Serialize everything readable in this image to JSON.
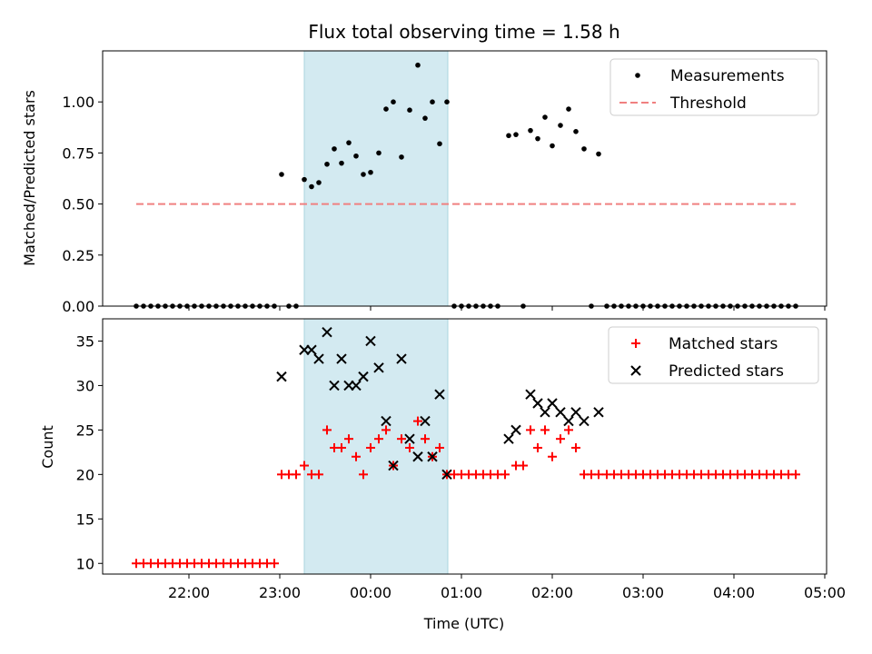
{
  "chart_data": {
    "type": "scatter",
    "title": "Flux total observing time = 1.58 h",
    "xlabel": "Time (UTC)",
    "x_tick_labels": [
      "22:00",
      "23:00",
      "00:00",
      "01:00",
      "02:00",
      "03:00",
      "04:00",
      "05:00"
    ],
    "x_tick_hours": [
      22,
      23,
      24,
      25,
      26,
      27,
      28,
      29
    ],
    "xlim_hours": [
      21.05,
      29.02
    ],
    "highlight_span_hours": [
      23.27,
      24.85
    ],
    "highlight_color": "#d3eaf1",
    "panels": [
      {
        "ylabel": "Matched/Predicted stars",
        "ylim": [
          0,
          1.25
        ],
        "y_ticks": [
          0.0,
          0.25,
          0.5,
          0.75,
          1.0
        ],
        "y_tick_labels": [
          "0.00",
          "0.25",
          "0.50",
          "0.75",
          "1.00"
        ],
        "legend_position": "top-right",
        "series": [
          {
            "name": "Measurements",
            "marker": "dot",
            "color": "#000000",
            "points": [
              [
                21.42,
                0
              ],
              [
                21.5,
                0
              ],
              [
                21.58,
                0
              ],
              [
                21.66,
                0
              ],
              [
                21.74,
                0
              ],
              [
                21.82,
                0
              ],
              [
                21.9,
                0
              ],
              [
                21.98,
                0
              ],
              [
                22.06,
                0
              ],
              [
                22.14,
                0
              ],
              [
                22.22,
                0
              ],
              [
                22.3,
                0
              ],
              [
                22.38,
                0
              ],
              [
                22.46,
                0
              ],
              [
                22.54,
                0
              ],
              [
                22.62,
                0
              ],
              [
                22.7,
                0
              ],
              [
                22.78,
                0
              ],
              [
                22.86,
                0
              ],
              [
                22.94,
                0
              ],
              [
                23.02,
                0.645
              ],
              [
                23.1,
                0
              ],
              [
                23.18,
                0
              ],
              [
                23.27,
                0.62
              ],
              [
                23.35,
                0.585
              ],
              [
                23.43,
                0.605
              ],
              [
                23.52,
                0.695
              ],
              [
                23.6,
                0.77
              ],
              [
                23.68,
                0.7
              ],
              [
                23.76,
                0.8
              ],
              [
                23.84,
                0.735
              ],
              [
                23.92,
                0.645
              ],
              [
                24.0,
                0.655
              ],
              [
                24.09,
                0.75
              ],
              [
                24.17,
                0.965
              ],
              [
                24.25,
                1.0
              ],
              [
                24.34,
                0.73
              ],
              [
                24.43,
                0.96
              ],
              [
                24.52,
                1.18
              ],
              [
                24.6,
                0.92
              ],
              [
                24.68,
                1.0
              ],
              [
                24.76,
                0.795
              ],
              [
                24.84,
                1.0
              ],
              [
                24.92,
                0
              ],
              [
                25.0,
                0
              ],
              [
                25.08,
                0
              ],
              [
                25.16,
                0
              ],
              [
                25.24,
                0
              ],
              [
                25.32,
                0
              ],
              [
                25.4,
                0
              ],
              [
                25.52,
                0.835
              ],
              [
                25.6,
                0.84
              ],
              [
                25.68,
                0
              ],
              [
                25.76,
                0.86
              ],
              [
                25.84,
                0.82
              ],
              [
                25.92,
                0.925
              ],
              [
                26.0,
                0.785
              ],
              [
                26.09,
                0.885
              ],
              [
                26.18,
                0.965
              ],
              [
                26.26,
                0.855
              ],
              [
                26.35,
                0.77
              ],
              [
                26.43,
                0
              ],
              [
                26.51,
                0.745
              ],
              [
                26.6,
                0
              ],
              [
                26.68,
                0
              ],
              [
                26.76,
                0
              ],
              [
                26.84,
                0
              ],
              [
                26.92,
                0
              ],
              [
                27.0,
                0
              ],
              [
                27.08,
                0
              ],
              [
                27.16,
                0
              ],
              [
                27.24,
                0
              ],
              [
                27.32,
                0
              ],
              [
                27.4,
                0
              ],
              [
                27.48,
                0
              ],
              [
                27.56,
                0
              ],
              [
                27.64,
                0
              ],
              [
                27.72,
                0
              ],
              [
                27.8,
                0
              ],
              [
                27.88,
                0
              ],
              [
                27.96,
                0
              ],
              [
                28.04,
                0
              ],
              [
                28.12,
                0
              ],
              [
                28.2,
                0
              ],
              [
                28.28,
                0
              ],
              [
                28.36,
                0
              ],
              [
                28.44,
                0
              ],
              [
                28.52,
                0
              ],
              [
                28.6,
                0
              ],
              [
                28.68,
                0
              ]
            ]
          },
          {
            "name": "Threshold",
            "marker": "dashed-line",
            "color": "#f08080",
            "points": [
              [
                21.42,
                0.5
              ],
              [
                28.68,
                0.5
              ]
            ]
          }
        ]
      },
      {
        "ylabel": "Count",
        "ylim": [
          8.8,
          37.5
        ],
        "y_ticks": [
          10,
          15,
          20,
          25,
          30,
          35
        ],
        "y_tick_labels": [
          "10",
          "15",
          "20",
          "25",
          "30",
          "35"
        ],
        "legend_position": "top-right",
        "series": [
          {
            "name": "Matched stars",
            "marker": "plus",
            "color": "#ff0000",
            "points": [
              [
                21.42,
                10
              ],
              [
                21.5,
                10
              ],
              [
                21.58,
                10
              ],
              [
                21.66,
                10
              ],
              [
                21.74,
                10
              ],
              [
                21.82,
                10
              ],
              [
                21.9,
                10
              ],
              [
                21.98,
                10
              ],
              [
                22.06,
                10
              ],
              [
                22.14,
                10
              ],
              [
                22.22,
                10
              ],
              [
                22.3,
                10
              ],
              [
                22.38,
                10
              ],
              [
                22.46,
                10
              ],
              [
                22.54,
                10
              ],
              [
                22.62,
                10
              ],
              [
                22.7,
                10
              ],
              [
                22.78,
                10
              ],
              [
                22.86,
                10
              ],
              [
                22.94,
                10
              ],
              [
                23.02,
                20
              ],
              [
                23.1,
                20
              ],
              [
                23.18,
                20
              ],
              [
                23.27,
                21
              ],
              [
                23.35,
                20
              ],
              [
                23.43,
                20
              ],
              [
                23.52,
                25
              ],
              [
                23.6,
                23
              ],
              [
                23.68,
                23
              ],
              [
                23.76,
                24
              ],
              [
                23.84,
                22
              ],
              [
                23.92,
                20
              ],
              [
                24.0,
                23
              ],
              [
                24.09,
                24
              ],
              [
                24.17,
                25
              ],
              [
                24.25,
                21
              ],
              [
                24.34,
                24
              ],
              [
                24.43,
                23
              ],
              [
                24.52,
                26
              ],
              [
                24.6,
                24
              ],
              [
                24.68,
                22
              ],
              [
                24.76,
                23
              ],
              [
                24.84,
                20
              ],
              [
                24.92,
                20
              ],
              [
                25.0,
                20
              ],
              [
                25.08,
                20
              ],
              [
                25.16,
                20
              ],
              [
                25.24,
                20
              ],
              [
                25.32,
                20
              ],
              [
                25.4,
                20
              ],
              [
                25.48,
                20
              ],
              [
                25.6,
                21
              ],
              [
                25.68,
                21
              ],
              [
                25.76,
                25
              ],
              [
                25.84,
                23
              ],
              [
                25.92,
                25
              ],
              [
                26.0,
                22
              ],
              [
                26.09,
                24
              ],
              [
                26.18,
                25
              ],
              [
                26.26,
                23
              ],
              [
                26.35,
                20
              ],
              [
                26.43,
                20
              ],
              [
                26.51,
                20
              ],
              [
                26.6,
                20
              ],
              [
                26.68,
                20
              ],
              [
                26.76,
                20
              ],
              [
                26.84,
                20
              ],
              [
                26.92,
                20
              ],
              [
                27.0,
                20
              ],
              [
                27.08,
                20
              ],
              [
                27.16,
                20
              ],
              [
                27.24,
                20
              ],
              [
                27.32,
                20
              ],
              [
                27.4,
                20
              ],
              [
                27.48,
                20
              ],
              [
                27.56,
                20
              ],
              [
                27.64,
                20
              ],
              [
                27.72,
                20
              ],
              [
                27.8,
                20
              ],
              [
                27.88,
                20
              ],
              [
                27.96,
                20
              ],
              [
                28.04,
                20
              ],
              [
                28.12,
                20
              ],
              [
                28.2,
                20
              ],
              [
                28.28,
                20
              ],
              [
                28.36,
                20
              ],
              [
                28.44,
                20
              ],
              [
                28.52,
                20
              ],
              [
                28.6,
                20
              ],
              [
                28.68,
                20
              ]
            ]
          },
          {
            "name": "Predicted stars",
            "marker": "x",
            "color": "#000000",
            "points": [
              [
                23.02,
                31
              ],
              [
                23.27,
                34
              ],
              [
                23.35,
                34
              ],
              [
                23.43,
                33
              ],
              [
                23.52,
                36
              ],
              [
                23.6,
                30
              ],
              [
                23.68,
                33
              ],
              [
                23.76,
                30
              ],
              [
                23.84,
                30
              ],
              [
                23.92,
                31
              ],
              [
                24.0,
                35
              ],
              [
                24.09,
                32
              ],
              [
                24.17,
                26
              ],
              [
                24.25,
                21
              ],
              [
                24.34,
                33
              ],
              [
                24.43,
                24
              ],
              [
                24.52,
                22
              ],
              [
                24.6,
                26
              ],
              [
                24.68,
                22
              ],
              [
                24.76,
                29
              ],
              [
                24.84,
                20
              ],
              [
                25.52,
                24
              ],
              [
                25.6,
                25
              ],
              [
                25.76,
                29
              ],
              [
                25.84,
                28
              ],
              [
                25.92,
                27
              ],
              [
                26.0,
                28
              ],
              [
                26.09,
                27
              ],
              [
                26.18,
                26
              ],
              [
                26.26,
                27
              ],
              [
                26.35,
                26
              ],
              [
                26.51,
                27
              ]
            ]
          }
        ]
      }
    ]
  }
}
